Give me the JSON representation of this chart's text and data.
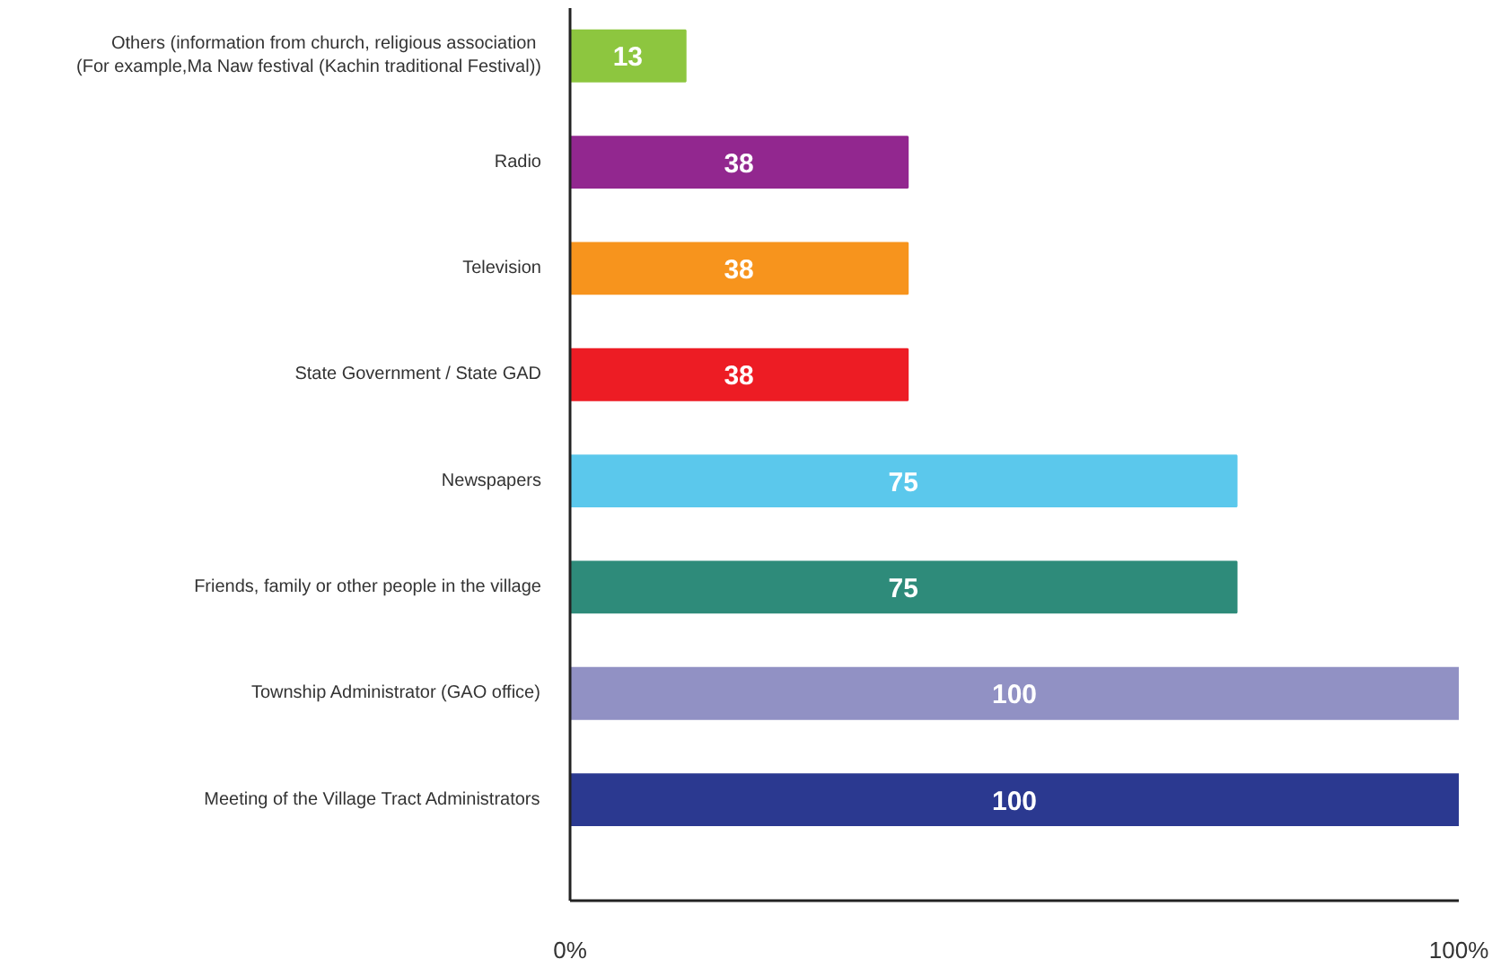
{
  "chart_data": {
    "type": "bar",
    "orientation": "horizontal",
    "categories": [
      "Others (information from  church, religious association\n(For example,Ma Naw festival (Kachin traditional Festival))",
      "Radio",
      "Television",
      "State Government / State GAD",
      "Newspapers",
      "Friends, family or other people in the village",
      "Township Administrator (GAO office)",
      "Meeting of the Village Tract Administrators"
    ],
    "values": [
      13,
      38,
      38,
      38,
      75,
      75,
      100,
      100
    ],
    "colors": [
      "#8dc63f",
      "#92278f",
      "#f7941d",
      "#ed1c24",
      "#5bc8ec",
      "#2e8b7a",
      "#9191c4",
      "#2b3990"
    ],
    "xlim": [
      0,
      100
    ],
    "xticks": [
      {
        "value": 0,
        "label": "0%"
      },
      {
        "value": 100,
        "label": "100%"
      }
    ],
    "data_labels": true
  }
}
